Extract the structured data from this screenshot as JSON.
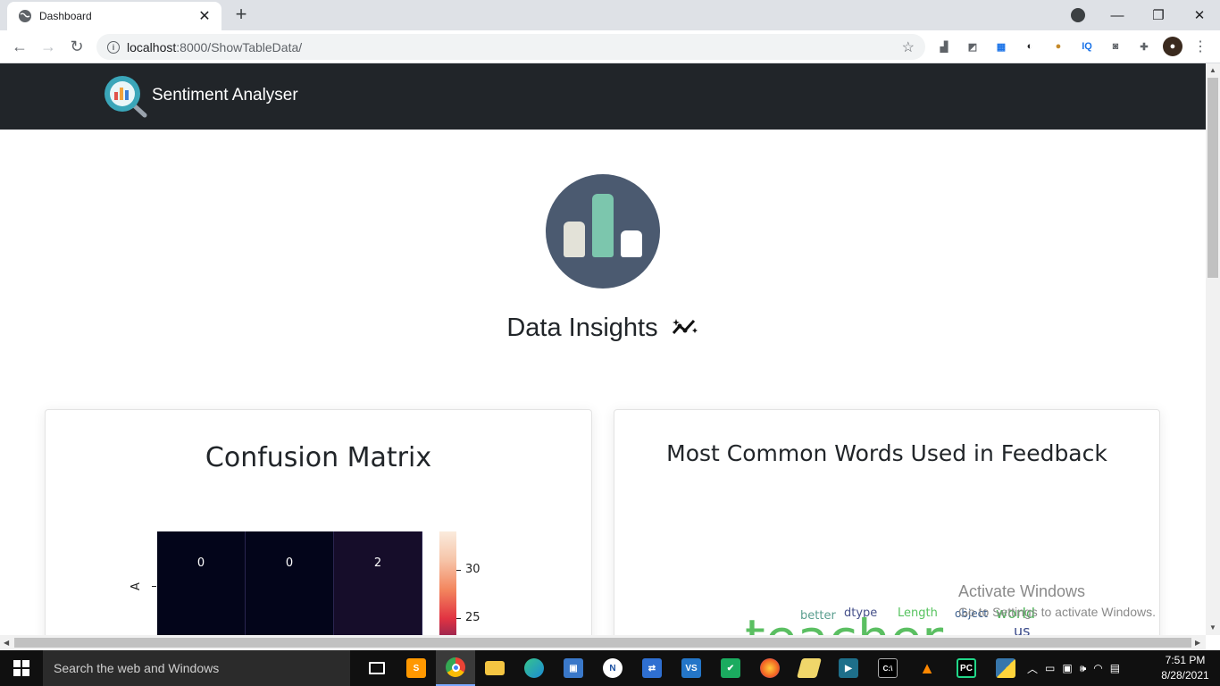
{
  "browser": {
    "tab_title": "Dashboard",
    "tab_close": "✕",
    "new_tab": "+",
    "url_host": "localhost",
    "url_rest": ":8000/ShowTableData/",
    "window_buttons": [
      "—",
      "❐",
      "✕"
    ]
  },
  "site": {
    "brand_name": "Sentiment Analyser"
  },
  "insights": {
    "title": "Data Insights"
  },
  "confusion_card": {
    "title": "Confusion Matrix",
    "row_label": "A",
    "cells": [
      "0",
      "0",
      "2"
    ],
    "colorbar_ticks": [
      "30",
      "25"
    ]
  },
  "words_card": {
    "title": "Most Common Words Used in Feedback",
    "words": [
      {
        "text": "better",
        "color": "#5a9e8f"
      },
      {
        "text": "dtype",
        "color": "#46508a"
      },
      {
        "text": "Length",
        "color": "#57c35f"
      },
      {
        "text": "object",
        "color": "#3b5f8f"
      },
      {
        "text": "world",
        "color": "#4fb45a"
      },
      {
        "text": "us",
        "color": "#3a4a8a"
      },
      {
        "text": "teacher",
        "color": "#5bbf62"
      }
    ]
  },
  "watermark": {
    "title": "Activate Windows",
    "subtitle": "Go to Settings to activate Windows."
  },
  "taskbar": {
    "search_placeholder": "Search the web and Windows",
    "time": "7:51 PM",
    "date": "8/28/2021"
  }
}
